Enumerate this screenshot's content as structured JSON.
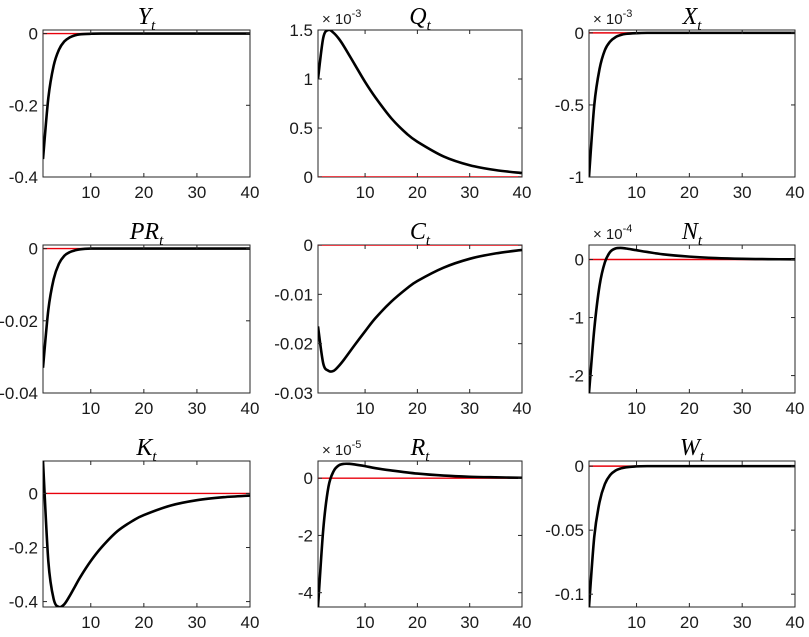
{
  "colors": {
    "response": "#000000",
    "zero_line": "#e8000b",
    "axes": "#262626",
    "background": "#ffffff"
  },
  "chart_data": [
    {
      "type": "line",
      "title": "Y",
      "title_subscript": "t",
      "exponent_label": "",
      "xlim": [
        1,
        40
      ],
      "xticks": [
        10,
        20,
        30,
        40
      ],
      "ylim": [
        -0.4,
        0.01
      ],
      "yticks": [
        -0.4,
        -0.2,
        0
      ],
      "ytick_labels": [
        "-0.4",
        "-0.2",
        "0"
      ],
      "zero_line": 0,
      "series": [
        {
          "x": [
            1,
            2,
            3,
            4,
            5,
            6,
            7,
            8,
            10,
            12,
            15,
            20,
            40
          ],
          "y": [
            -0.35,
            -0.18,
            -0.09,
            -0.045,
            -0.022,
            -0.011,
            -0.005,
            -0.002,
            -0.0005,
            0,
            0,
            0,
            0
          ]
        }
      ]
    },
    {
      "type": "line",
      "title": "Q",
      "title_subscript": "t",
      "exponent_label": "-3",
      "xlim": [
        1,
        40
      ],
      "xticks": [
        10,
        20,
        30,
        40
      ],
      "ylim": [
        0,
        1.5
      ],
      "yticks": [
        0,
        0.5,
        1,
        1.5
      ],
      "ytick_labels": [
        "0",
        "0.5",
        "1",
        "1.5"
      ],
      "zero_line": 0,
      "series": [
        {
          "x": [
            1,
            2,
            3,
            4,
            5,
            6,
            8,
            10,
            12,
            15,
            18,
            20,
            25,
            30,
            35,
            40
          ],
          "y": [
            1.0,
            1.42,
            1.5,
            1.47,
            1.41,
            1.33,
            1.15,
            0.97,
            0.81,
            0.6,
            0.44,
            0.36,
            0.21,
            0.12,
            0.07,
            0.04
          ]
        }
      ]
    },
    {
      "type": "line",
      "title": "X",
      "title_subscript": "t",
      "exponent_label": "-3",
      "xlim": [
        1,
        40
      ],
      "xticks": [
        10,
        20,
        30,
        40
      ],
      "ylim": [
        -1,
        0.02
      ],
      "yticks": [
        -1,
        -0.5,
        0
      ],
      "ytick_labels": [
        "-1",
        "-0.5",
        "0"
      ],
      "zero_line": 0,
      "series": [
        {
          "x": [
            1,
            2,
            3,
            4,
            5,
            6,
            7,
            8,
            10,
            12,
            15,
            20,
            40
          ],
          "y": [
            -1.0,
            -0.5,
            -0.25,
            -0.12,
            -0.06,
            -0.03,
            -0.015,
            -0.007,
            -0.002,
            0,
            0,
            0,
            0
          ]
        }
      ]
    },
    {
      "type": "line",
      "title": "PR",
      "title_subscript": "t",
      "exponent_label": "",
      "xlim": [
        1,
        40
      ],
      "xticks": [
        10,
        20,
        30,
        40
      ],
      "ylim": [
        -0.04,
        0.001
      ],
      "yticks": [
        -0.04,
        -0.02,
        0
      ],
      "ytick_labels": [
        "-0.04",
        "-0.02",
        "0"
      ],
      "zero_line": 0,
      "series": [
        {
          "x": [
            1,
            2,
            3,
            4,
            5,
            6,
            7,
            8,
            10,
            12,
            15,
            20,
            40
          ],
          "y": [
            -0.033,
            -0.017,
            -0.0085,
            -0.0042,
            -0.002,
            -0.001,
            -0.0005,
            -0.0002,
            0,
            0,
            0,
            0,
            0
          ]
        }
      ]
    },
    {
      "type": "line",
      "title": "C",
      "title_subscript": "t",
      "exponent_label": "",
      "xlim": [
        1,
        40
      ],
      "xticks": [
        10,
        20,
        30,
        40
      ],
      "ylim": [
        -0.03,
        0
      ],
      "yticks": [
        -0.03,
        -0.02,
        -0.01,
        0
      ],
      "ytick_labels": [
        "-0.03",
        "-0.02",
        "-0.01",
        "0"
      ],
      "zero_line": 0,
      "series": [
        {
          "x": [
            1,
            2,
            3,
            4,
            5,
            6,
            8,
            10,
            12,
            15,
            18,
            20,
            25,
            30,
            35,
            40
          ],
          "y": [
            -0.0165,
            -0.024,
            -0.0255,
            -0.0255,
            -0.0245,
            -0.0232,
            -0.0203,
            -0.0175,
            -0.0148,
            -0.0115,
            -0.0088,
            -0.0073,
            -0.0046,
            -0.0028,
            -0.0017,
            -0.001
          ]
        }
      ]
    },
    {
      "type": "line",
      "title": "N",
      "title_subscript": "t",
      "exponent_label": "-4",
      "xlim": [
        1,
        40
      ],
      "xticks": [
        10,
        20,
        30,
        40
      ],
      "ylim": [
        -2.3,
        0.25
      ],
      "yticks": [
        -2,
        -1,
        0
      ],
      "ytick_labels": [
        "-2",
        "-1",
        "0"
      ],
      "zero_line": 0,
      "series": [
        {
          "x": [
            1,
            2,
            3,
            4,
            5,
            6,
            7,
            8,
            10,
            12,
            15,
            20,
            25,
            30,
            35,
            40
          ],
          "y": [
            -2.3,
            -1.2,
            -0.45,
            -0.05,
            0.13,
            0.19,
            0.2,
            0.19,
            0.16,
            0.13,
            0.09,
            0.05,
            0.025,
            0.012,
            0.006,
            0.003
          ]
        }
      ]
    },
    {
      "type": "line",
      "title": "K",
      "title_subscript": "t",
      "exponent_label": "",
      "xlim": [
        1,
        40
      ],
      "xticks": [
        10,
        20,
        30,
        40
      ],
      "ylim": [
        -0.42,
        0.12
      ],
      "yticks": [
        -0.4,
        -0.2,
        0
      ],
      "ytick_labels": [
        "-0.4",
        "-0.2",
        "0"
      ],
      "zero_line": 0,
      "series": [
        {
          "x": [
            1,
            2,
            3,
            4,
            5,
            6,
            7,
            8,
            10,
            12,
            15,
            18,
            20,
            25,
            30,
            35,
            40
          ],
          "y": [
            0.12,
            -0.25,
            -0.39,
            -0.42,
            -0.41,
            -0.38,
            -0.345,
            -0.31,
            -0.25,
            -0.2,
            -0.14,
            -0.1,
            -0.08,
            -0.045,
            -0.025,
            -0.014,
            -0.008
          ]
        }
      ]
    },
    {
      "type": "line",
      "title": "R",
      "title_subscript": "t",
      "exponent_label": "-5",
      "xlim": [
        1,
        40
      ],
      "xticks": [
        10,
        20,
        30,
        40
      ],
      "ylim": [
        -4.5,
        0.6
      ],
      "yticks": [
        -4,
        -2,
        0
      ],
      "ytick_labels": [
        "-4",
        "-2",
        "0"
      ],
      "zero_line": 0,
      "series": [
        {
          "x": [
            1,
            2,
            3,
            4,
            5,
            6,
            7,
            8,
            10,
            12,
            15,
            20,
            25,
            30,
            35,
            40
          ],
          "y": [
            -4.5,
            -1.8,
            -0.3,
            0.25,
            0.45,
            0.5,
            0.5,
            0.48,
            0.42,
            0.35,
            0.27,
            0.16,
            0.09,
            0.05,
            0.03,
            0.015
          ]
        }
      ]
    },
    {
      "type": "line",
      "title": "W",
      "title_subscript": "t",
      "exponent_label": "",
      "xlim": [
        1,
        40
      ],
      "xticks": [
        10,
        20,
        30,
        40
      ],
      "ylim": [
        -0.11,
        0.004
      ],
      "yticks": [
        -0.1,
        -0.05,
        0
      ],
      "ytick_labels": [
        "-0.1",
        "-0.05",
        "0"
      ],
      "zero_line": 0,
      "series": [
        {
          "x": [
            1,
            2,
            3,
            4,
            5,
            6,
            7,
            8,
            10,
            12,
            15,
            20,
            40
          ],
          "y": [
            -0.11,
            -0.055,
            -0.028,
            -0.014,
            -0.007,
            -0.0035,
            -0.0018,
            -0.0009,
            -0.0002,
            0,
            0,
            0,
            0
          ]
        }
      ]
    }
  ]
}
